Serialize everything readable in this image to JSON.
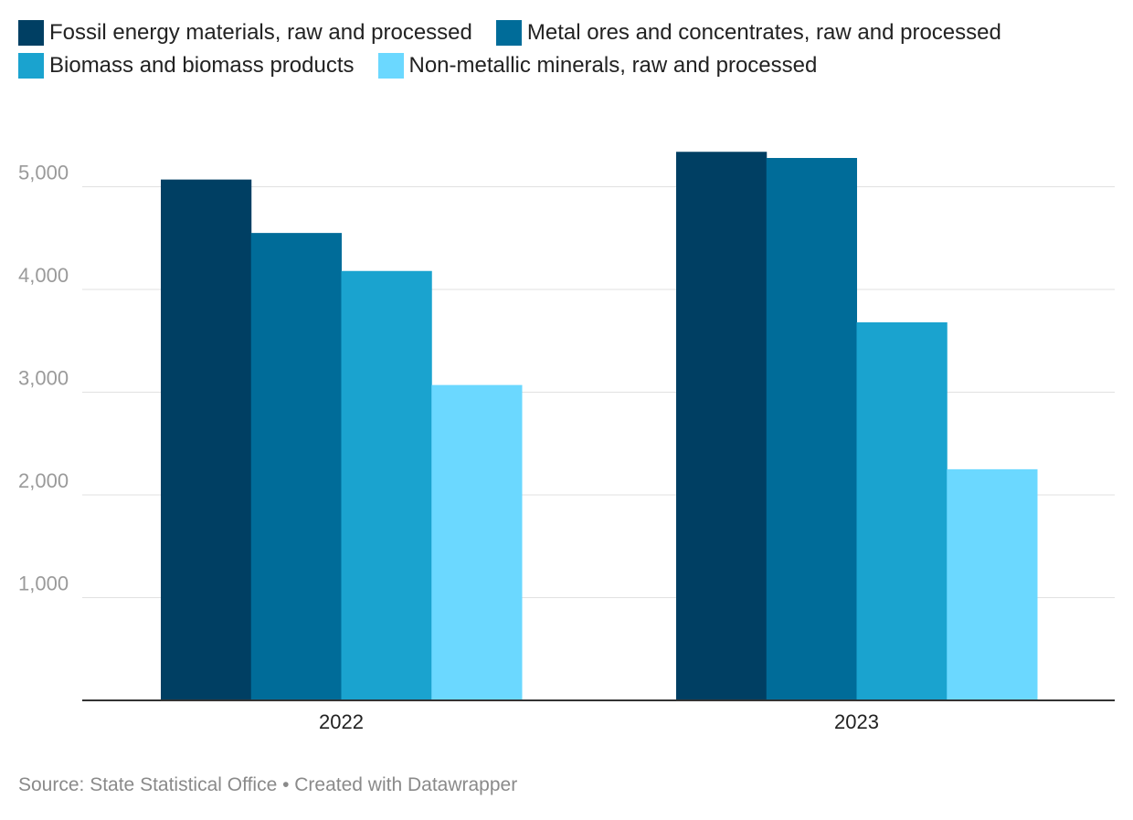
{
  "chart_data": {
    "type": "bar",
    "categories": [
      "2022",
      "2023"
    ],
    "series": [
      {
        "name": "Fossil energy materials, raw and processed",
        "color": "#003f63",
        "values": [
          5070,
          5340
        ]
      },
      {
        "name": "Metal ores and concentrates, raw and processed",
        "color": "#006c99",
        "values": [
          4550,
          5280
        ]
      },
      {
        "name": "Biomass and biomass products",
        "color": "#1aa3cf",
        "values": [
          4180,
          3680
        ]
      },
      {
        "name": "Non-metallic minerals, raw and processed",
        "color": "#6bd8ff",
        "values": [
          3070,
          2250
        ]
      }
    ],
    "yticks": [
      1000,
      2000,
      3000,
      4000,
      5000
    ],
    "ytick_labels": [
      "1,000",
      "2,000",
      "3,000",
      "4,000",
      "5,000"
    ],
    "ylim": [
      0,
      5500
    ],
    "grid": true,
    "legend": "top-left",
    "title": "",
    "xlabel": "",
    "ylabel": ""
  },
  "footer": {
    "text": "Source: State Statistical Office • Created with Datawrapper"
  }
}
